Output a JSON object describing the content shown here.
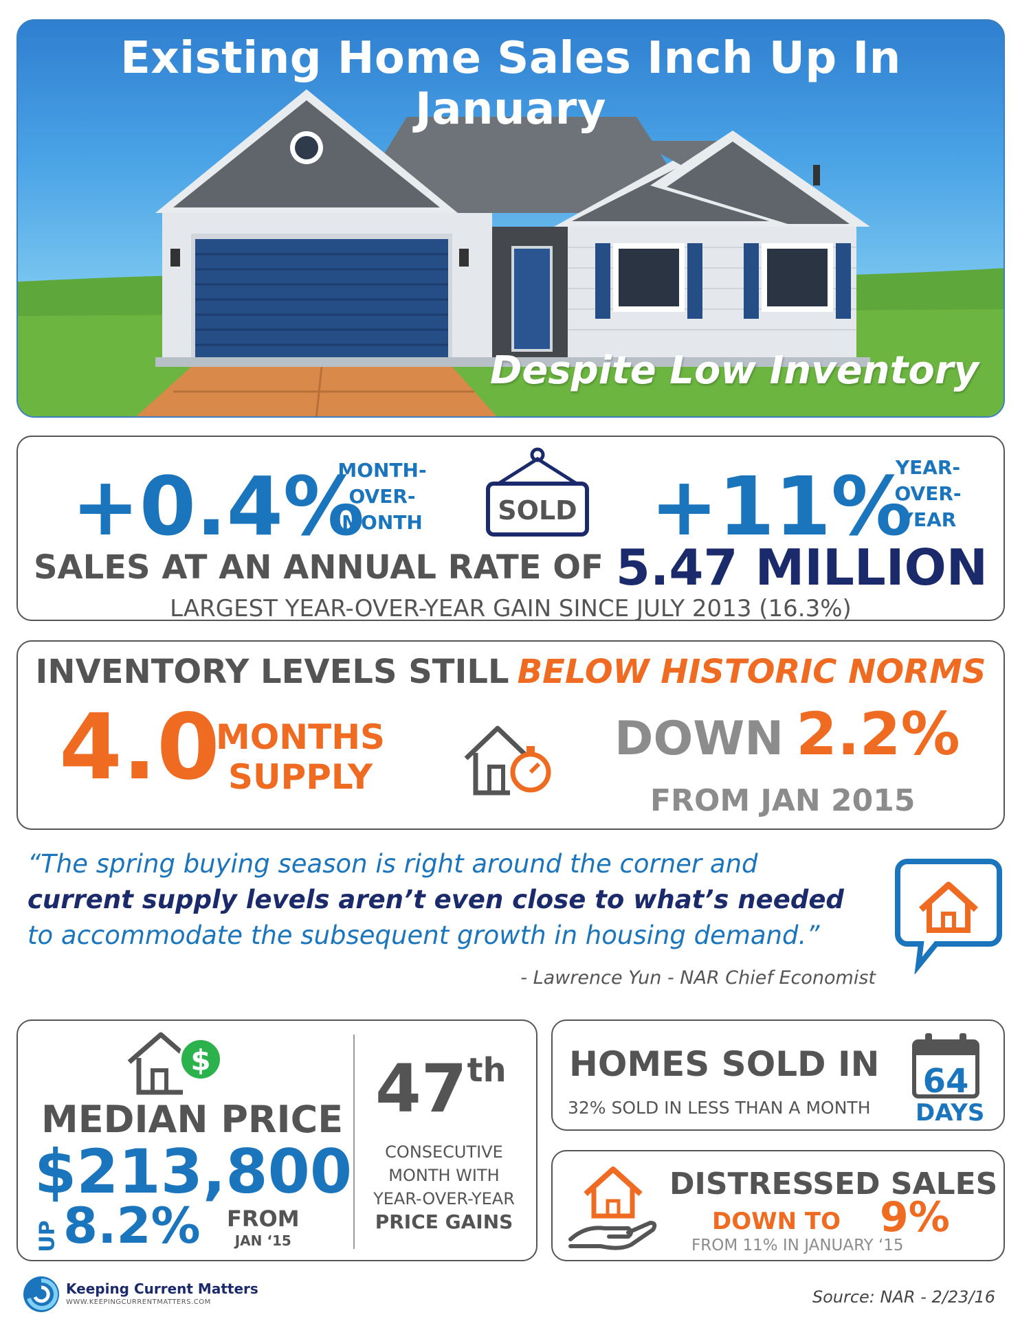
{
  "hero": {
    "title": "Existing Home Sales Inch Up In January",
    "subtitle": "Despite Low Inventory"
  },
  "sales": {
    "mom_value": "+0.4%",
    "mom_label": [
      "MONTH-",
      "OVER-",
      "MONTH"
    ],
    "sign_text": "SOLD",
    "yoy_value": "+11%",
    "yoy_label": [
      "YEAR-",
      "OVER-",
      "YEAR"
    ],
    "annual_label": "SALES AT AN ANNUAL RATE OF",
    "annual_value": "5.47 MILLION",
    "largest_gain": "LARGEST YEAR-OVER-YEAR GAIN SINCE JULY 2013 (16.3%)"
  },
  "inventory": {
    "heading": "INVENTORY LEVELS STILL",
    "heading_highlight": "BELOW HISTORIC NORMS",
    "months_value": "4.0",
    "months_label": [
      "MONTHS",
      "SUPPLY"
    ],
    "down_word": "DOWN",
    "down_value": "2.2%",
    "down_from": "FROM JAN 2015"
  },
  "quote": {
    "line1": "“The spring buying season is right around the corner and",
    "line2": "current supply levels aren’t even close to what’s needed",
    "line3": "to accommodate the subsequent growth in housing demand.”",
    "author": "- Lawrence Yun - NAR Chief Economist"
  },
  "median": {
    "title": "MEDIAN PRICE",
    "value": "$213,800",
    "up_label": "UP",
    "change": "8.2%",
    "from_label": "FROM",
    "from_period": "JAN ‘15",
    "consecutive_number": "47",
    "consecutive_suffix": "th",
    "consecutive_lines": [
      "CONSECUTIVE",
      "MONTH WITH",
      "YEAR-OVER-YEAR"
    ],
    "consecutive_strong": "PRICE GAINS"
  },
  "days_on_market": {
    "title": "HOMES SOLD IN",
    "subtitle": "32% SOLD IN LESS THAN A MONTH",
    "value": "64",
    "unit": "DAYS"
  },
  "distressed": {
    "title": "DISTRESSED SALES",
    "down_label": "DOWN TO",
    "value": "9%",
    "from_text": "FROM 11% IN JANUARY ‘15"
  },
  "footer": {
    "logo_name": "Keeping Current Matters",
    "logo_url": "WWW.KEEPINGCURRENTMATTERS.COM",
    "source": "Source: NAR - 2/23/16"
  },
  "colors": {
    "brand_blue": "#1b75bc",
    "navy": "#1b2a6b",
    "orange": "#ef6b22",
    "gray_text": "#545454"
  },
  "icons": [
    "house-illustration",
    "sold-sign-icon",
    "house-timer-icon",
    "speech-bubble-house-icon",
    "house-dollar-icon",
    "calendar-icon",
    "hand-house-icon",
    "kcm-logo-icon"
  ]
}
